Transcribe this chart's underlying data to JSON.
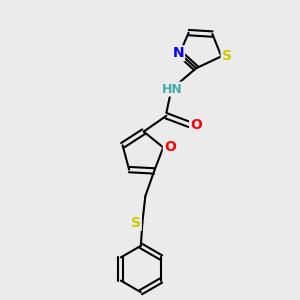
{
  "background_color": "#ebebeb",
  "bond_color": "#000000",
  "bond_width": 1.5,
  "atom_colors": {
    "N": "#0000ff",
    "O": "#ff0000",
    "S": "#cccc00",
    "H": "#44aaaa",
    "C": "#000000"
  },
  "font_size": 9,
  "fig_width": 3.0,
  "fig_height": 3.0,
  "dpi": 100
}
